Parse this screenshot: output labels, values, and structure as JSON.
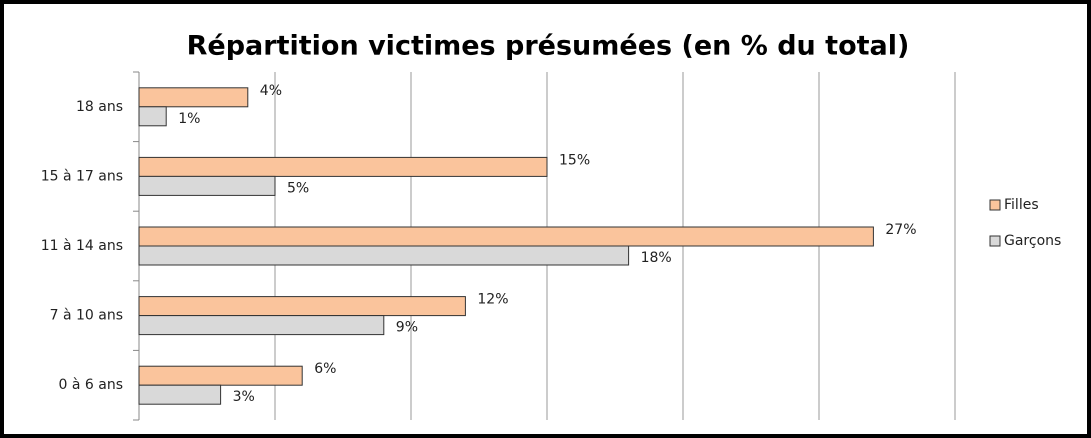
{
  "chart_data": {
    "type": "hbar",
    "title": "Répartition victimes présumées (en % du total)",
    "categories": [
      "18 ans",
      "15 à 17 ans",
      "11 à 14 ans",
      "7 à 10 ans",
      "0 à 6 ans"
    ],
    "series": [
      {
        "name": "Filles",
        "color": "#fac49c",
        "values": [
          4,
          15,
          27,
          12,
          6
        ],
        "value_labels": [
          "4%",
          "15%",
          "27%",
          "12%",
          "6%"
        ]
      },
      {
        "name": "Garçons",
        "color": "#d9d9d9",
        "values": [
          1,
          5,
          18,
          9,
          3
        ],
        "value_labels": [
          "1%",
          "5%",
          "18%",
          "9%",
          "3%"
        ]
      }
    ],
    "xlim": [
      0,
      30
    ],
    "xticks": [
      0,
      5,
      10,
      15,
      20,
      25,
      30
    ],
    "grid": true,
    "legend": "right"
  }
}
